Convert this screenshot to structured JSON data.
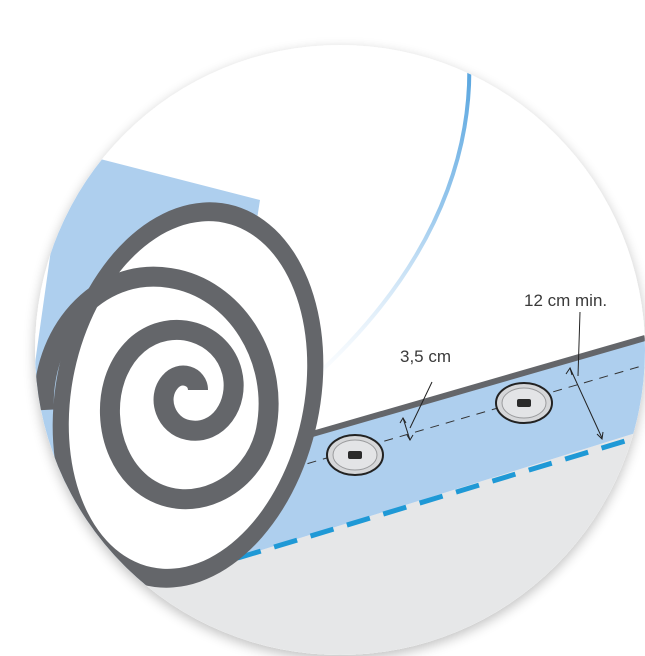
{
  "labels": {
    "membrane_overlap": "12 cm min.",
    "fastener_edge_distance": "3,5 cm"
  },
  "colors": {
    "membrane": "#aecfee",
    "membrane_edge": "#64666a",
    "seam_dashes": "#1f99d6",
    "roof_surface": "#e6e7e8",
    "roll_spiral": "#64666a",
    "accent_arc": "#2f8fd6",
    "fastener_plate": "#d6d7d9"
  },
  "icons": {
    "fastener_left": "fastener-plate-icon",
    "fastener_right": "fastener-plate-icon"
  }
}
